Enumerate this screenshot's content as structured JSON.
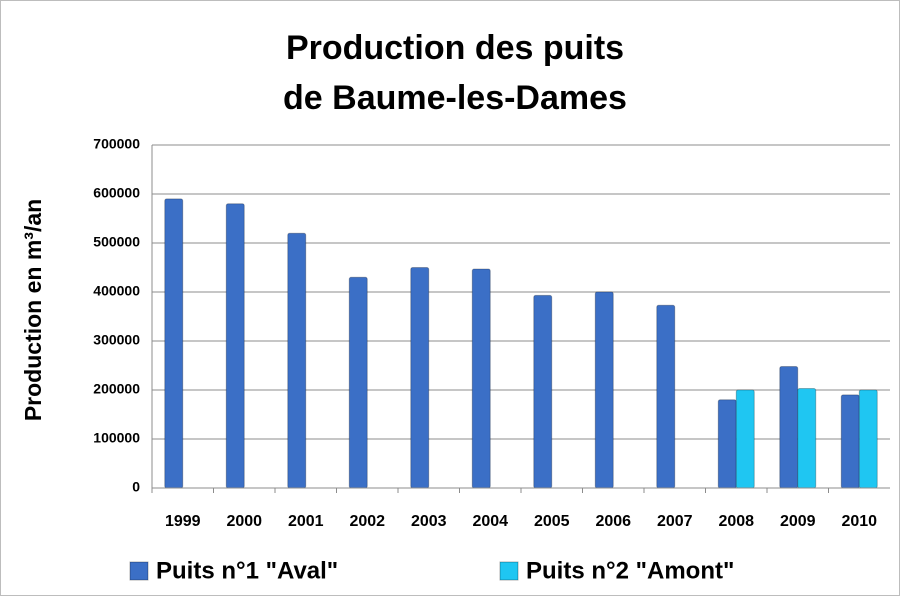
{
  "chart_data": {
    "type": "bar",
    "title": [
      "Production des puits",
      "de Baume-les-Dames"
    ],
    "y_label": "Production en m³/an",
    "categories": [
      "1999",
      "2000",
      "2001",
      "2002",
      "2003",
      "2004",
      "2005",
      "2006",
      "2007",
      "2008",
      "2009",
      "2010"
    ],
    "series": [
      {
        "name": "Puits n°1 \"Aval\"",
        "color": "#3b6fc6",
        "values": [
          590000,
          580000,
          520000,
          430000,
          450000,
          447000,
          393000,
          400000,
          373000,
          180000,
          248000,
          190000
        ]
      },
      {
        "name": "Puits n°2 \"Amont\"",
        "color": "#1fc6f2",
        "values": [
          null,
          null,
          null,
          null,
          null,
          null,
          null,
          null,
          null,
          200000,
          203000,
          200000
        ]
      }
    ],
    "ylim": [
      0,
      700000
    ],
    "yticks": [
      0,
      100000,
      200000,
      300000,
      400000,
      500000,
      600000,
      700000
    ],
    "grid": true,
    "legend": "bottom"
  }
}
